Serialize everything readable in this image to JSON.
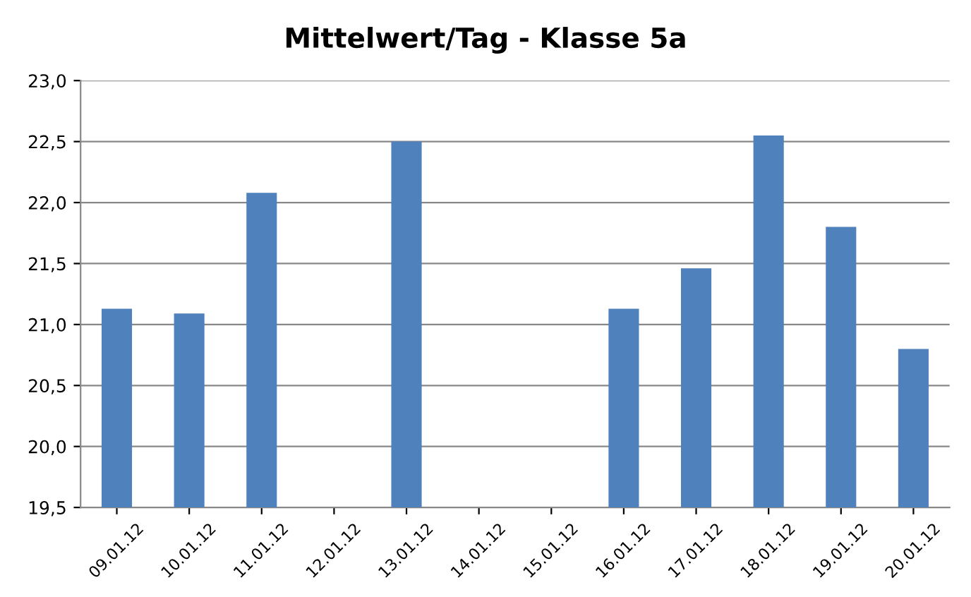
{
  "chart_data": {
    "type": "bar",
    "title": "Mittelwert/Tag - Klasse 5a",
    "categories": [
      "09.01.12",
      "10.01.12",
      "11.01.12",
      "12.01.12",
      "13.01.12",
      "14.01.12",
      "15.01.12",
      "16.01.12",
      "17.01.12",
      "18.01.12",
      "19.01.12",
      "20.01.12"
    ],
    "values": [
      21.13,
      21.09,
      22.08,
      null,
      22.5,
      null,
      null,
      21.13,
      21.46,
      22.55,
      21.8,
      20.8
    ],
    "color": "#4f81bd",
    "ylim": [
      19.5,
      23.0
    ],
    "yticks": [
      {
        "value": 19.5,
        "label": "19,5"
      },
      {
        "value": 20.0,
        "label": "20,0"
      },
      {
        "value": 20.5,
        "label": "20,5"
      },
      {
        "value": 21.0,
        "label": "21,0"
      },
      {
        "value": 21.5,
        "label": "21,5"
      },
      {
        "value": 22.0,
        "label": "22,0"
      },
      {
        "value": 22.5,
        "label": "22,5"
      },
      {
        "value": 23.0,
        "label": "23,0"
      }
    ],
    "grid": "y"
  }
}
